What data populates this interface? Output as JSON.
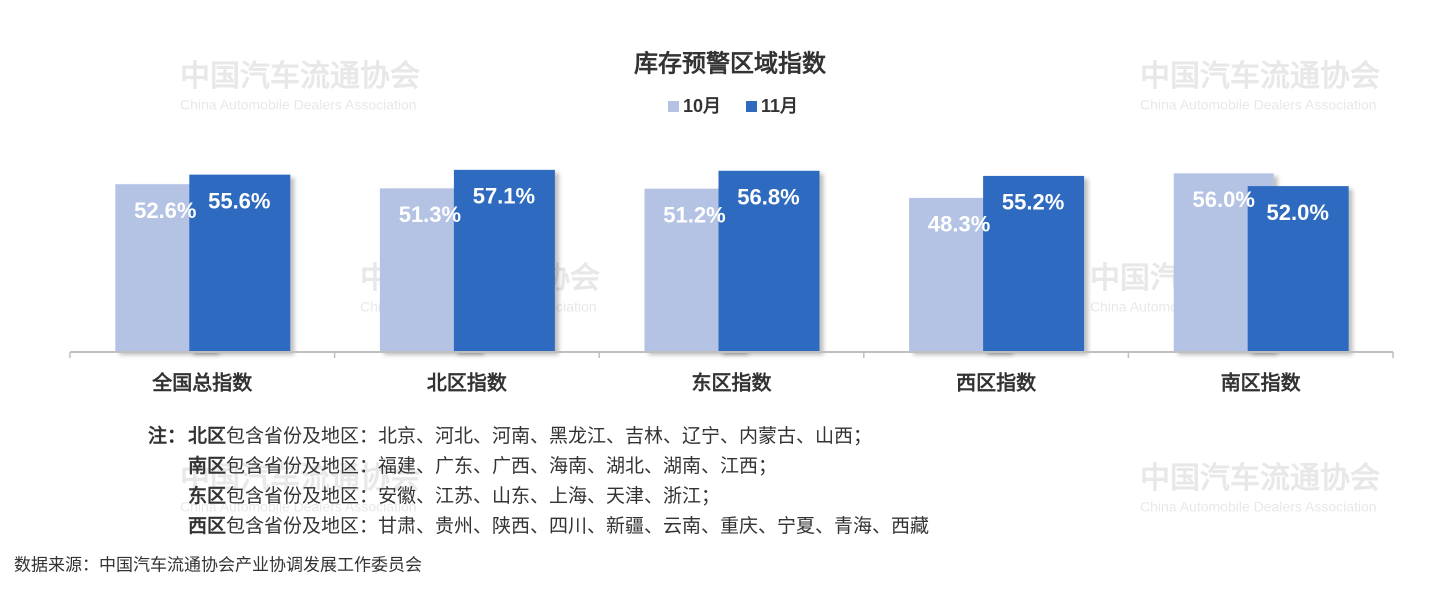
{
  "chart_data": {
    "type": "bar",
    "title": "库存预警区域指数",
    "categories": [
      "全国总指数",
      "北区指数",
      "东区指数",
      "西区指数",
      "南区指数"
    ],
    "series": [
      {
        "name": "10月",
        "color": "#b4c2e4",
        "values": [
          52.6,
          51.3,
          51.2,
          48.3,
          56.0
        ],
        "value_labels": [
          "52.6%",
          "51.3%",
          "51.2%",
          "48.3%",
          "56.0%"
        ]
      },
      {
        "name": "11月",
        "color": "#2e6bbf",
        "values": [
          55.6,
          57.1,
          56.8,
          55.2,
          52.0
        ],
        "value_labels": [
          "55.6%",
          "57.1%",
          "56.8%",
          "55.2%",
          "52.0%"
        ]
      }
    ],
    "ylim": [
      0,
      60
    ],
    "legend": "top",
    "note_prefix": "注：",
    "notes": [
      {
        "region": "北区",
        "text": "包含省份及地区：北京、河北、河南、黑龙江、吉林、辽宁、内蒙古、山西；"
      },
      {
        "region": "南区",
        "text": "包含省份及地区：福建、广东、广西、海南、湖北、湖南、江西；"
      },
      {
        "region": "东区",
        "text": "包含省份及地区：安徽、江苏、山东、上海、天津、浙江；"
      },
      {
        "region": "西区",
        "text": "包含省份及地区：甘肃、贵州、陕西、四川、新疆、云南、重庆、宁夏、青海、西藏"
      }
    ],
    "source": "数据来源：中国汽车流通协会产业协调发展工作委员会",
    "watermark": {
      "name": "中国汽车流通协会",
      "name_en": "China Automobile Dealers Association"
    }
  }
}
